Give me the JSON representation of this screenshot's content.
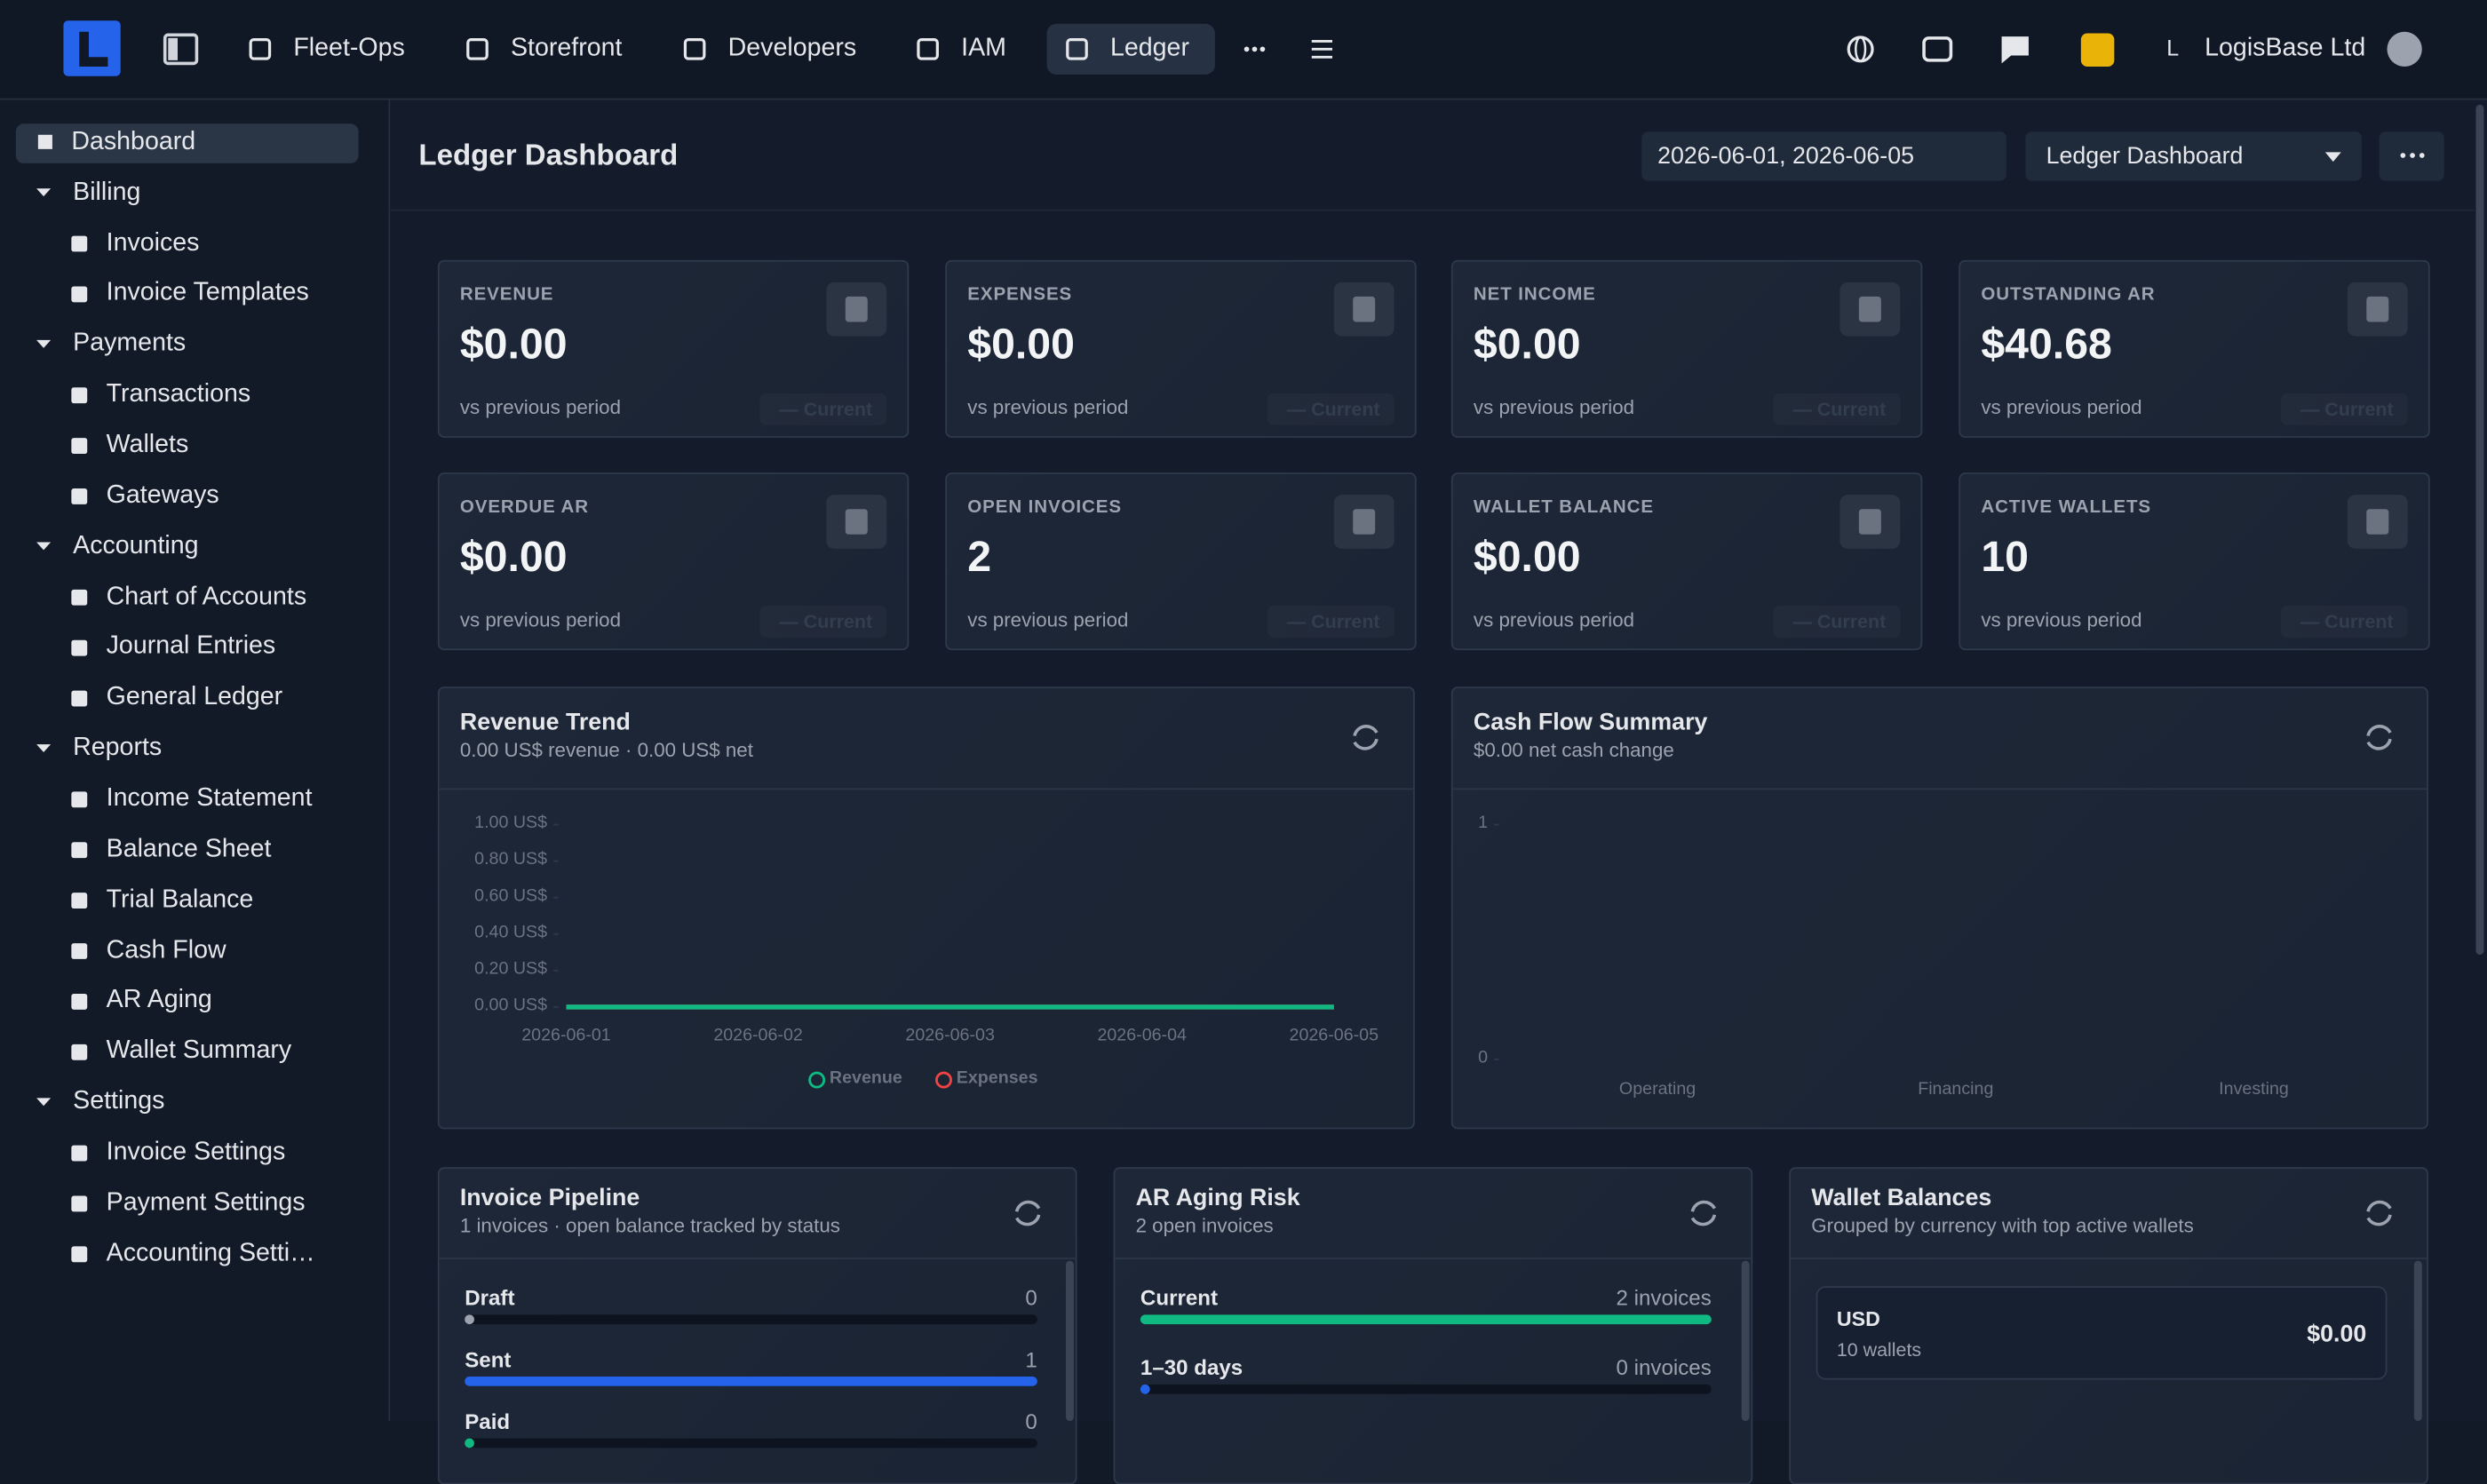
{
  "topbar": {
    "nav": [
      "Fleet-Ops",
      "Storefront",
      "Developers",
      "IAM",
      "Ledger"
    ],
    "active": 4,
    "user_initial": "L",
    "organization": "LogisBase Ltd"
  },
  "sidebar": {
    "dashboard": "Dashboard",
    "groups": [
      {
        "label": "Billing",
        "items": [
          "Invoices",
          "Invoice Templates"
        ]
      },
      {
        "label": "Payments",
        "items": [
          "Transactions",
          "Wallets",
          "Gateways"
        ]
      },
      {
        "label": "Accounting",
        "items": [
          "Chart of Accounts",
          "Journal Entries",
          "General Ledger"
        ]
      },
      {
        "label": "Reports",
        "items": [
          "Income Statement",
          "Balance Sheet",
          "Trial Balance",
          "Cash Flow",
          "AR Aging",
          "Wallet Summary"
        ]
      },
      {
        "label": "Settings",
        "items": [
          "Invoice Settings",
          "Payment Settings",
          "Accounting Setti…"
        ]
      }
    ]
  },
  "header": {
    "title": "Ledger Dashboard",
    "date_range": "2026-06-01, 2026-06-05",
    "view": "Ledger Dashboard"
  },
  "kpis": [
    {
      "label": "REVENUE",
      "value": "$0.00",
      "note": "vs previous period",
      "badge": "— Current"
    },
    {
      "label": "EXPENSES",
      "value": "$0.00",
      "note": "vs previous period",
      "badge": "— Current"
    },
    {
      "label": "NET INCOME",
      "value": "$0.00",
      "note": "vs previous period",
      "badge": "— Current"
    },
    {
      "label": "OUTSTANDING AR",
      "value": "$40.68",
      "note": "vs previous period",
      "badge": "— Current"
    },
    {
      "label": "OVERDUE AR",
      "value": "$0.00",
      "note": "vs previous period",
      "badge": "— Current"
    },
    {
      "label": "OPEN INVOICES",
      "value": "2",
      "note": "vs previous period",
      "badge": "— Current"
    },
    {
      "label": "WALLET BALANCE",
      "value": "$0.00",
      "note": "vs previous period",
      "badge": "— Current"
    },
    {
      "label": "ACTIVE WALLETS",
      "value": "10",
      "note": "vs previous period",
      "badge": "— Current"
    }
  ],
  "revenue_trend": {
    "type": "line",
    "title": "Revenue Trend",
    "subtitle": "0.00 US$ revenue · 0.00 US$ net",
    "x": [
      "2026-06-01",
      "2026-06-02",
      "2026-06-03",
      "2026-06-04",
      "2026-06-05"
    ],
    "series": [
      {
        "name": "Revenue",
        "color": "#10b981",
        "values": [
          0,
          0,
          0,
          0,
          0
        ]
      },
      {
        "name": "Expenses",
        "color": "#ef4444",
        "values": [
          0,
          0,
          0,
          0,
          0
        ]
      }
    ],
    "ylim": [
      0,
      1
    ],
    "yticks": [
      {
        "value": 1,
        "label": "1.00 US$"
      },
      {
        "value": 0.8,
        "label": "0.80 US$"
      },
      {
        "value": 0.6,
        "label": "0.60 US$"
      },
      {
        "value": 0.4,
        "label": "0.40 US$"
      },
      {
        "value": 0.2,
        "label": "0.20 US$"
      },
      {
        "value": 0,
        "label": "0.00 US$"
      }
    ]
  },
  "cash_flow": {
    "type": "bar",
    "title": "Cash Flow Summary",
    "subtitle": "$0.00 net cash change",
    "categories": [
      "Operating",
      "Financing",
      "Investing"
    ],
    "values": [
      0,
      0,
      0
    ],
    "color": "#10b981",
    "ylim": [
      0,
      1
    ],
    "yticks": [
      1,
      0
    ]
  },
  "invoice_pipeline": {
    "title": "Invoice Pipeline",
    "subtitle": "1 invoices · open balance tracked by status",
    "categories": [
      "Draft",
      "Sent",
      "Paid"
    ],
    "values": [
      0,
      1,
      0
    ],
    "colors": [
      "#9ca3af",
      "#2563eb",
      "#10b981"
    ]
  },
  "ar_aging": {
    "title": "AR Aging Risk",
    "subtitle": "2 open invoices",
    "categories": [
      "Current",
      "1–30 days"
    ],
    "values": [
      2,
      0
    ],
    "value_labels": [
      "2 invoices",
      "0 invoices"
    ],
    "colors": [
      "#10b981",
      "#2563eb"
    ]
  },
  "wallet_balances": {
    "title": "Wallet Balances",
    "subtitle": "Grouped by currency with top active wallets",
    "items": [
      {
        "currency": "USD",
        "wallets": "10 wallets",
        "balance": "$0.00"
      }
    ]
  }
}
